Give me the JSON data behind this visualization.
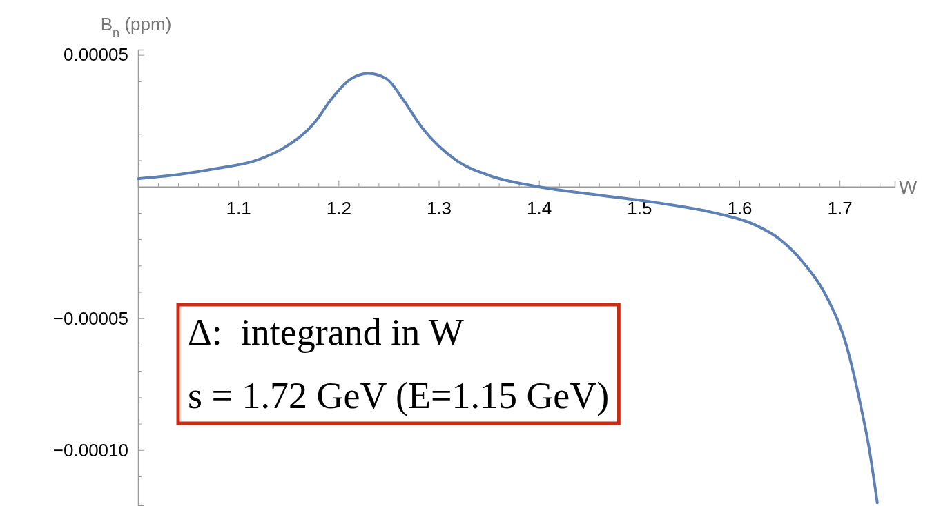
{
  "chart_data": {
    "type": "line",
    "ylabel": "B$_{n}$ (ppm)",
    "xlabel": "W",
    "x": [
      1.0,
      1.039,
      1.079,
      1.119,
      1.145,
      1.177,
      1.193,
      1.2125,
      1.2297,
      1.248,
      1.264,
      1.2827,
      1.317,
      1.3515,
      1.399,
      1.459,
      1.516,
      1.573,
      1.6165,
      1.639,
      1.665,
      1.688,
      1.7066,
      1.7204,
      1.7295,
      1.7376
    ],
    "series": [
      {
        "color": "#5e81b5",
        "values": [
          3e-06,
          4.5e-06,
          6.9e-06,
          1.01e-05,
          1.46e-05,
          2.47e-05,
          3.33e-05,
          4.09e-05,
          4.3e-05,
          4.09e-05,
          3.33e-05,
          2.27e-05,
          1.01e-05,
          4.1e-06,
          0.0,
          -3.2e-06,
          -6e-06,
          -9.8e-06,
          -1.47e-05,
          -1.96e-05,
          -2.94e-05,
          -4.25e-05,
          -6e-05,
          -8.19e-05,
          -9.94e-05,
          -0.00012
        ]
      }
    ],
    "xlim": [
      1.0,
      1.755
    ],
    "ylim": [
      -0.000121,
      5.2e-05
    ],
    "xticks": [
      {
        "value": 1.02,
        "label": null
      },
      {
        "value": 1.04,
        "label": null
      },
      {
        "value": 1.06,
        "label": null
      },
      {
        "value": 1.08,
        "label": null
      },
      1.1,
      {
        "value": 1.12,
        "label": null
      },
      {
        "value": 1.14,
        "label": null
      },
      {
        "value": 1.16,
        "label": null
      },
      {
        "value": 1.18,
        "label": null
      },
      1.2,
      {
        "value": 1.22,
        "label": null
      },
      {
        "value": 1.24,
        "label": null
      },
      {
        "value": 1.26,
        "label": null
      },
      {
        "value": 1.28,
        "label": null
      },
      1.3,
      {
        "value": 1.32,
        "label": null
      },
      {
        "value": 1.34,
        "label": null
      },
      {
        "value": 1.36,
        "label": null
      },
      {
        "value": 1.38,
        "label": null
      },
      1.4,
      {
        "value": 1.42,
        "label": null
      },
      {
        "value": 1.44,
        "label": null
      },
      {
        "value": 1.46,
        "label": null
      },
      {
        "value": 1.48,
        "label": null
      },
      1.5,
      {
        "value": 1.52,
        "label": null
      },
      {
        "value": 1.54,
        "label": null
      },
      {
        "value": 1.56,
        "label": null
      },
      {
        "value": 1.58,
        "label": null
      },
      1.6,
      {
        "value": 1.62,
        "label": null
      },
      {
        "value": 1.64,
        "label": null
      },
      {
        "value": 1.66,
        "label": null
      },
      {
        "value": 1.68,
        "label": null
      },
      1.7,
      {
        "value": 1.72,
        "label": null
      },
      {
        "value": 1.74,
        "label": null
      }
    ],
    "yticks": [
      {
        "value": -0.00012,
        "label": null
      },
      {
        "value": -0.00011,
        "label": null
      },
      {
        "value": -0.0001,
        "label": "−0.00010"
      },
      {
        "value": -9e-05,
        "label": null
      },
      {
        "value": -8e-05,
        "label": null
      },
      {
        "value": -7e-05,
        "label": null
      },
      {
        "value": -6e-05,
        "label": null
      },
      {
        "value": -5e-05,
        "label": "−0.00005"
      },
      {
        "value": -4e-05,
        "label": null
      },
      {
        "value": -3e-05,
        "label": null
      },
      {
        "value": -2e-05,
        "label": null
      },
      {
        "value": -1e-05,
        "label": null
      },
      {
        "value": 1e-05,
        "label": null
      },
      {
        "value": 2e-05,
        "label": null
      },
      {
        "value": 3e-05,
        "label": null
      },
      {
        "value": 4e-05,
        "label": null
      },
      {
        "value": 5e-05,
        "label": "0.00005"
      }
    ],
    "annotations": [
      "Δ:  integrand in W",
      "s = 1.72 GeV (E=1.15 GeV)"
    ]
  }
}
